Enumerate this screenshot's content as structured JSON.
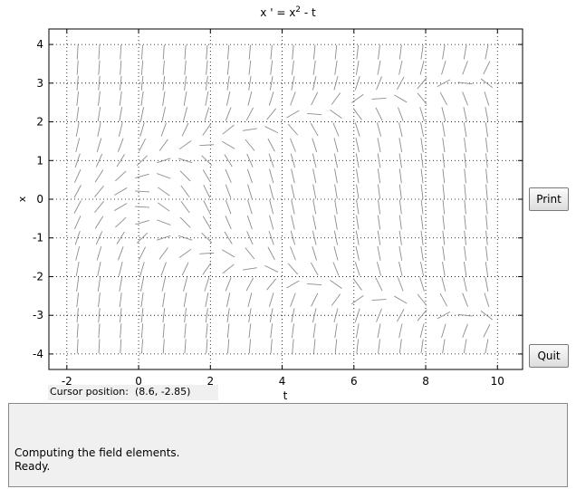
{
  "plot": {
    "title_base": "x ' = x",
    "title_sup": "2",
    "title_tail": " - t",
    "xlabel": "t",
    "ylabel": "x",
    "xlim": [
      -2.5,
      10.7
    ],
    "ylim": [
      -4.4,
      4.4
    ],
    "xticks": [
      -2,
      0,
      2,
      4,
      6,
      8,
      10
    ],
    "yticks": [
      -4,
      -3,
      -2,
      -1,
      0,
      1,
      2,
      3,
      4
    ],
    "grid": true,
    "field_equation": "x' = x^2 - t",
    "field_t_range": [
      -2,
      10
    ],
    "field_x_range": [
      -4,
      4
    ],
    "field_n": 20,
    "field_color": "#8c8c8c"
  },
  "buttons": {
    "print_label": "Print",
    "quit_label": "Quit"
  },
  "cursor": {
    "label": "Cursor position:",
    "value": "(8.6, -2.85)"
  },
  "messages": [
    "Computing the field elements.",
    "Ready."
  ]
}
